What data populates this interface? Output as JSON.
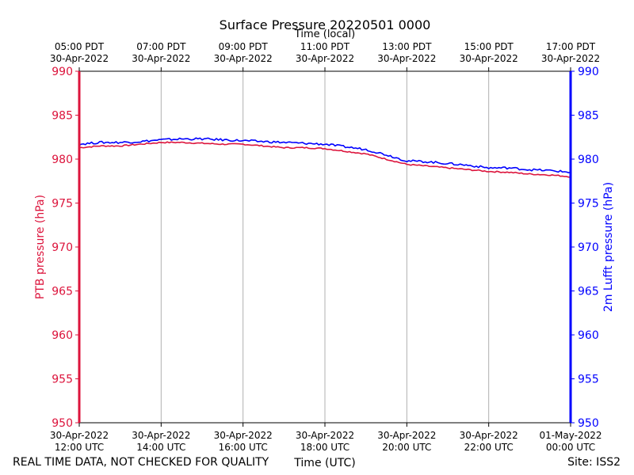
{
  "chart_data": {
    "type": "line",
    "title": "Surface Pressure 20220501 0000",
    "top_axis_label": "Time (local)",
    "xlabel": "Time (UTC)",
    "ylabel_left": "PTB pressure (hPa)",
    "ylabel_right": "2m Lufft pressure (hPa)",
    "ylim": [
      950,
      990
    ],
    "xlim_hours": [
      0,
      12
    ],
    "y_ticks": [
      950,
      955,
      960,
      965,
      970,
      975,
      980,
      985,
      990
    ],
    "bottom_ticks": [
      {
        "h": 0,
        "date": "30-Apr-2022",
        "time": "12:00 UTC"
      },
      {
        "h": 2,
        "date": "30-Apr-2022",
        "time": "14:00 UTC"
      },
      {
        "h": 4,
        "date": "30-Apr-2022",
        "time": "16:00 UTC"
      },
      {
        "h": 6,
        "date": "30-Apr-2022",
        "time": "18:00 UTC"
      },
      {
        "h": 8,
        "date": "30-Apr-2022",
        "time": "20:00 UTC"
      },
      {
        "h": 10,
        "date": "30-Apr-2022",
        "time": "22:00 UTC"
      },
      {
        "h": 12,
        "date": "01-May-2022",
        "time": "00:00 UTC"
      }
    ],
    "top_ticks": [
      {
        "h": 0,
        "time": "05:00 PDT",
        "date": "30-Apr-2022"
      },
      {
        "h": 2,
        "time": "07:00 PDT",
        "date": "30-Apr-2022"
      },
      {
        "h": 4,
        "time": "09:00 PDT",
        "date": "30-Apr-2022"
      },
      {
        "h": 6,
        "time": "11:00 PDT",
        "date": "30-Apr-2022"
      },
      {
        "h": 8,
        "time": "13:00 PDT",
        "date": "30-Apr-2022"
      },
      {
        "h": 10,
        "time": "15:00 PDT",
        "date": "30-Apr-2022"
      },
      {
        "h": 12,
        "time": "17:00 PDT",
        "date": "30-Apr-2022"
      }
    ],
    "grid": "vertical",
    "series": [
      {
        "name": "PTB pressure",
        "axis": "left",
        "color": "#dc143c",
        "x": [
          0,
          0.5,
          1,
          1.5,
          2,
          2.5,
          3,
          3.5,
          4,
          4.5,
          5,
          5.5,
          6,
          6.5,
          7,
          7.5,
          8,
          8.5,
          9,
          9.5,
          10,
          10.5,
          11,
          11.5,
          12
        ],
        "y": [
          981.3,
          981.5,
          981.5,
          981.7,
          981.9,
          981.9,
          981.8,
          981.7,
          981.7,
          981.5,
          981.3,
          981.3,
          981.2,
          980.9,
          980.6,
          980.0,
          979.4,
          979.2,
          979.0,
          978.8,
          978.6,
          978.5,
          978.3,
          978.2,
          978.0
        ]
      },
      {
        "name": "2m Lufft pressure",
        "axis": "right",
        "color": "#0000ff",
        "x": [
          0,
          0.5,
          1,
          1.5,
          2,
          2.5,
          3,
          3.5,
          4,
          4.5,
          5,
          5.5,
          6,
          6.5,
          7,
          7.5,
          8,
          8.5,
          9,
          9.5,
          10,
          10.5,
          11,
          11.5,
          12
        ],
        "y": [
          981.7,
          981.9,
          981.9,
          982.0,
          982.2,
          982.3,
          982.3,
          982.2,
          982.1,
          982.0,
          981.9,
          981.8,
          981.7,
          981.4,
          981.1,
          980.5,
          979.8,
          979.7,
          979.5,
          979.3,
          979.0,
          979.0,
          978.8,
          978.7,
          978.5
        ]
      }
    ]
  },
  "footer": {
    "note": "REAL TIME DATA, NOT CHECKED FOR QUALITY",
    "site": "Site: ISS2"
  },
  "colors": {
    "left_axis": "#dc143c",
    "right_axis": "#0000ff",
    "grid": "#b0b0b0"
  }
}
